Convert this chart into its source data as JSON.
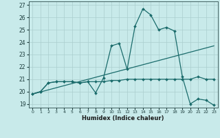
{
  "xlabel": "Humidex (Indice chaleur)",
  "background_color": "#c8eaea",
  "grid_color": "#aacece",
  "line_color": "#1a6b6b",
  "xlim": [
    -0.5,
    23.5
  ],
  "ylim": [
    18.7,
    27.3
  ],
  "yticks": [
    19,
    20,
    21,
    22,
    23,
    24,
    25,
    26,
    27
  ],
  "xticks": [
    0,
    1,
    2,
    3,
    4,
    5,
    6,
    7,
    8,
    9,
    10,
    11,
    12,
    13,
    14,
    15,
    16,
    17,
    18,
    19,
    20,
    21,
    22,
    23
  ],
  "line1_x": [
    0,
    1,
    2,
    3,
    4,
    5,
    6,
    7,
    8,
    9,
    10,
    11,
    12,
    13,
    14,
    15,
    16,
    17,
    18,
    19,
    20,
    21,
    22,
    23
  ],
  "line1_y": [
    19.8,
    20.0,
    20.7,
    20.8,
    20.8,
    20.8,
    20.7,
    20.8,
    19.9,
    21.1,
    23.7,
    23.9,
    21.8,
    25.3,
    26.7,
    26.2,
    25.0,
    25.2,
    24.9,
    21.2,
    19.0,
    19.4,
    19.3,
    18.9
  ],
  "line2_x": [
    0,
    1,
    2,
    3,
    4,
    5,
    6,
    7,
    8,
    9,
    10,
    11,
    12,
    13,
    14,
    15,
    16,
    17,
    18,
    19,
    20,
    21,
    22,
    23
  ],
  "line2_y": [
    19.8,
    20.0,
    20.7,
    20.8,
    20.8,
    20.8,
    20.7,
    20.8,
    20.8,
    20.8,
    20.9,
    20.9,
    21.0,
    21.0,
    21.0,
    21.0,
    21.0,
    21.0,
    21.0,
    21.0,
    21.0,
    21.2,
    21.0,
    21.0
  ],
  "line3_x": [
    0,
    23
  ],
  "line3_y": [
    19.8,
    23.7
  ]
}
